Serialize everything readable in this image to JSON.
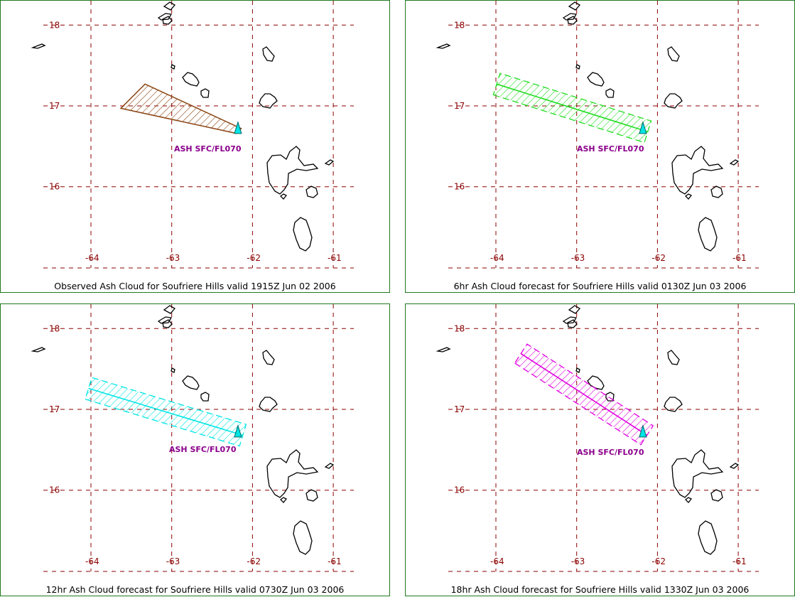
{
  "map": {
    "grid_color": "#8b0000",
    "latitudes": [
      18,
      17,
      16
    ],
    "longitudes": [
      -64,
      -63,
      -62,
      -61
    ],
    "latitude_labels": [
      "18",
      "17",
      "16"
    ],
    "longitude_labels": [
      "-64",
      "-63",
      "-62",
      "-61"
    ],
    "coastline_color": "#000000",
    "volcano_marker_color": "#00e5e5",
    "volcano": {
      "lon": -62.18,
      "lat": 16.72
    }
  },
  "panels": [
    {
      "id": "observed",
      "caption": "Observed Ash Cloud for Soufriere  Hills valid 1915Z Jun 02 2006",
      "ash_label": "ASH SFC/FL070",
      "color": "#8b4513",
      "shape": "polygon",
      "polygon": [
        [
          -63.63,
          16.97
        ],
        [
          -63.33,
          17.27
        ],
        [
          -62.14,
          16.72
        ],
        [
          -62.2,
          16.66
        ]
      ]
    },
    {
      "id": "forecast-6hr",
      "caption": "6hr Ash Cloud forecast for Soufriere  Hills valid 0130Z Jun 03 2006",
      "ash_label": "ASH SFC/FL070",
      "color": "#22dd22",
      "shape": "swath",
      "axis_start": [
        -63.99,
        17.27
      ],
      "axis_end": [
        -62.12,
        16.68
      ],
      "half_width": 0.14
    },
    {
      "id": "forecast-12hr",
      "caption": "12hr Ash Cloud forecast for Soufriere  Hills valid 0730Z Jun 03 2006",
      "ash_label": "ASH SFC/FL070",
      "color": "#00e5e5",
      "shape": "swath",
      "axis_start": [
        -64.03,
        17.26
      ],
      "axis_end": [
        -62.12,
        16.68
      ],
      "half_width": 0.14
    },
    {
      "id": "forecast-18hr",
      "caption": "18hr Ash Cloud forecast for Soufriere  Hills valid 1330Z Jun 03 2006",
      "ash_label": "ASH SFC/FL070",
      "color": "#e000e0",
      "shape": "swath",
      "axis_start": [
        -63.69,
        17.69
      ],
      "axis_end": [
        -62.13,
        16.68
      ],
      "half_width": 0.14
    }
  ]
}
